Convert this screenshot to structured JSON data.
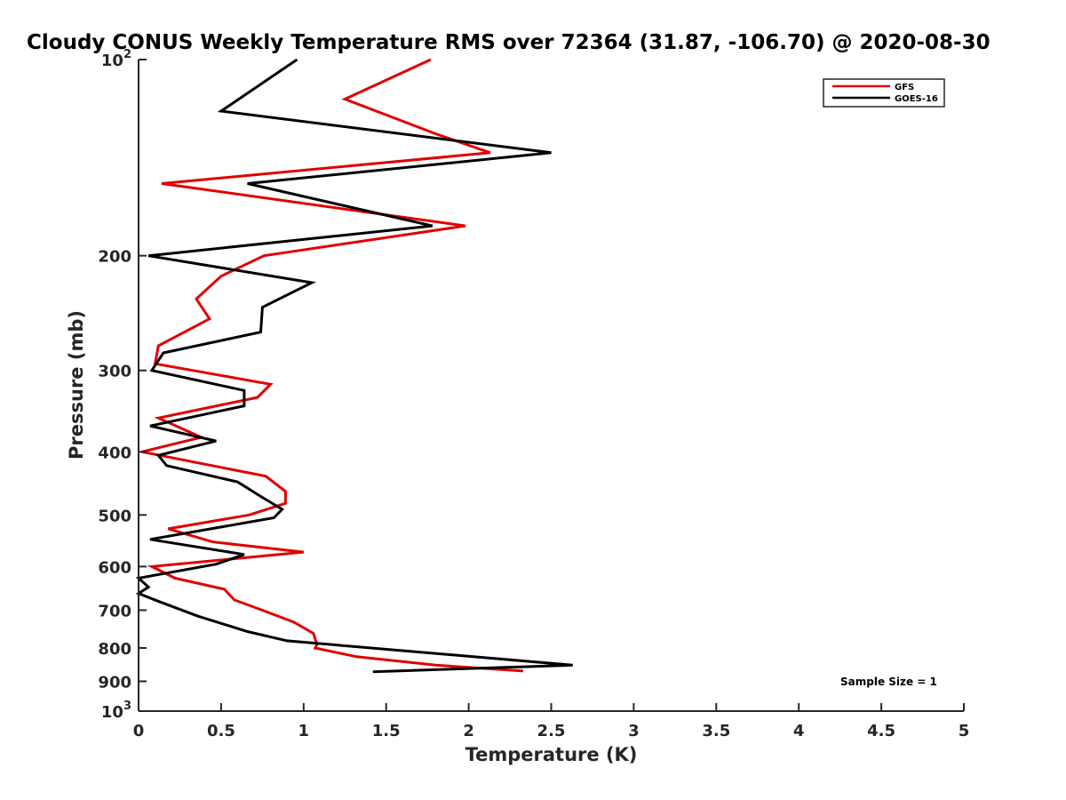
{
  "chart_data": {
    "type": "line",
    "title": "Cloudy CONUS Weekly Temperature RMS over 72364 (31.87, -106.70) @ 2020-08-30",
    "xlabel": "Temperature (K)",
    "ylabel": "Pressure (mb)",
    "xlim": [
      0,
      5
    ],
    "ylim": [
      100,
      1000
    ],
    "y_scale": "log",
    "y_reversed": true,
    "x_ticks": [
      "0",
      "0.5",
      "1",
      "1.5",
      "2",
      "2.5",
      "3",
      "3.5",
      "4",
      "4.5",
      "5"
    ],
    "y_ticks": [
      {
        "value": 100,
        "base": "10",
        "exp": "2"
      },
      {
        "value": 200,
        "label": "200"
      },
      {
        "value": 300,
        "label": "300"
      },
      {
        "value": 400,
        "label": "400"
      },
      {
        "value": 500,
        "label": "500"
      },
      {
        "value": 600,
        "label": "600"
      },
      {
        "value": 700,
        "label": "700"
      },
      {
        "value": 800,
        "label": "800"
      },
      {
        "value": 900,
        "label": "900"
      },
      {
        "value": 1000,
        "base": "10",
        "exp": "3"
      }
    ],
    "legend_position": "top-right",
    "grid": false,
    "series": [
      {
        "name": "GFS",
        "color": "#e00000",
        "points": [
          [
            1.77,
            100
          ],
          [
            1.25,
            115
          ],
          [
            1.8,
            130
          ],
          [
            2.13,
            139
          ],
          [
            0.14,
            155
          ],
          [
            1.98,
            180
          ],
          [
            0.76,
            200
          ],
          [
            0.5,
            215
          ],
          [
            0.35,
            233
          ],
          [
            0.43,
            250
          ],
          [
            0.12,
            275
          ],
          [
            0.1,
            293
          ],
          [
            0.8,
            315
          ],
          [
            0.72,
            330
          ],
          [
            0.12,
            355
          ],
          [
            0.38,
            380
          ],
          [
            0.02,
            400
          ],
          [
            0.77,
            436
          ],
          [
            0.89,
            460
          ],
          [
            0.89,
            480
          ],
          [
            0.67,
            500
          ],
          [
            0.18,
            525
          ],
          [
            0.45,
            550
          ],
          [
            1.0,
            570
          ],
          [
            0.08,
            600
          ],
          [
            0.22,
            625
          ],
          [
            0.52,
            650
          ],
          [
            0.58,
            675
          ],
          [
            0.75,
            700
          ],
          [
            0.94,
            730
          ],
          [
            1.06,
            760
          ],
          [
            1.08,
            790
          ],
          [
            1.07,
            800
          ],
          [
            1.32,
            825
          ],
          [
            1.8,
            850
          ],
          [
            2.33,
            868
          ]
        ]
      },
      {
        "name": "GOES-16",
        "color": "#000000",
        "points": [
          [
            0.96,
            100
          ],
          [
            0.5,
            120
          ],
          [
            2.5,
            139
          ],
          [
            0.66,
            155
          ],
          [
            1.78,
            180
          ],
          [
            0.06,
            200
          ],
          [
            1.05,
            220
          ],
          [
            0.75,
            240
          ],
          [
            0.74,
            262
          ],
          [
            0.15,
            282
          ],
          [
            0.08,
            300
          ],
          [
            0.64,
            322
          ],
          [
            0.64,
            340
          ],
          [
            0.07,
            365
          ],
          [
            0.47,
            385
          ],
          [
            0.12,
            405
          ],
          [
            0.17,
            420
          ],
          [
            0.6,
            445
          ],
          [
            0.75,
            470
          ],
          [
            0.87,
            490
          ],
          [
            0.82,
            505
          ],
          [
            0.07,
            545
          ],
          [
            0.64,
            575
          ],
          [
            0.47,
            595
          ],
          [
            0.0,
            625
          ],
          [
            0.06,
            645
          ],
          [
            0.0,
            660
          ],
          [
            0.13,
            680
          ],
          [
            0.36,
            715
          ],
          [
            0.66,
            755
          ],
          [
            0.9,
            780
          ],
          [
            2.63,
            850
          ],
          [
            1.42,
            870
          ]
        ]
      }
    ],
    "annotations": [
      "Sample Size = 1"
    ]
  }
}
